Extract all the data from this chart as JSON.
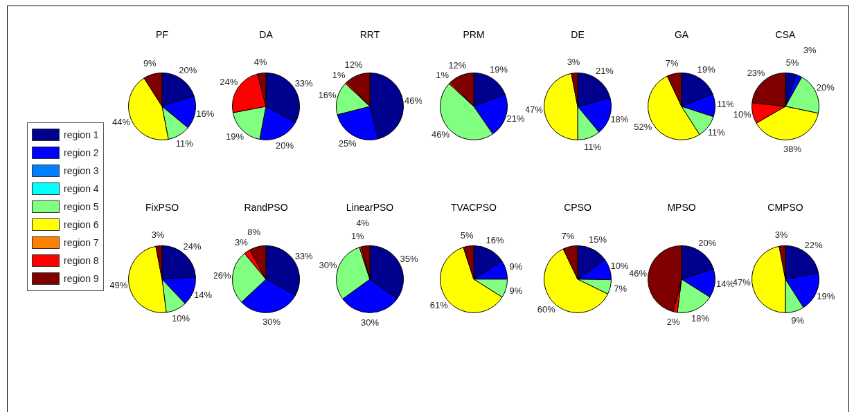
{
  "chart_data": [
    {
      "type": "pie",
      "title": "PF",
      "legend": "left",
      "categories": [
        "region 1",
        "region 2",
        "region 3",
        "region 4",
        "region 5",
        "region 6",
        "region 7",
        "region 8",
        "region 9"
      ],
      "colors": [
        "#00008f",
        "#0000ff",
        "#0080ff",
        "#00ffff",
        "#80ff80",
        "#ffff00",
        "#ff8000",
        "#ff0000",
        "#800000"
      ],
      "values": [
        20,
        16,
        null,
        null,
        11,
        44,
        null,
        null,
        9
      ],
      "value_labels": [
        "20%",
        "16%",
        null,
        null,
        "11%",
        "44%",
        null,
        null,
        "9%"
      ]
    },
    {
      "type": "pie",
      "title": "DA",
      "colors": [
        "#00008f",
        "#0000ff",
        "#0080ff",
        "#00ffff",
        "#80ff80",
        "#ffff00",
        "#ff8000",
        "#ff0000",
        "#800000"
      ],
      "values": [
        33,
        20,
        null,
        null,
        19,
        null,
        null,
        24,
        4
      ],
      "value_labels": [
        "33%",
        "20%",
        null,
        null,
        "19%",
        null,
        null,
        "24%",
        "4%"
      ]
    },
    {
      "type": "pie",
      "title": "RRT",
      "colors": [
        "#00008f",
        "#0000ff",
        "#0080ff",
        "#00ffff",
        "#80ff80",
        "#ffff00",
        "#ff8000",
        "#ff0000",
        "#800000"
      ],
      "values": [
        46,
        25,
        null,
        null,
        16,
        null,
        null,
        1,
        12
      ],
      "value_labels": [
        "46%",
        "25%",
        null,
        null,
        "16%",
        null,
        null,
        "1%",
        "12%"
      ]
    },
    {
      "type": "pie",
      "title": "PRM",
      "colors": [
        "#00008f",
        "#0000ff",
        "#0080ff",
        "#00ffff",
        "#80ff80",
        "#ffff00",
        "#ff8000",
        "#ff0000",
        "#800000"
      ],
      "values": [
        19,
        21,
        null,
        null,
        46,
        null,
        null,
        1,
        12
      ],
      "value_labels": [
        "19%",
        "21%",
        null,
        null,
        "46%",
        null,
        null,
        "1%",
        "12%"
      ]
    },
    {
      "type": "pie",
      "title": "DE",
      "colors": [
        "#00008f",
        "#0000ff",
        "#0080ff",
        "#00ffff",
        "#80ff80",
        "#ffff00",
        "#ff8000",
        "#ff0000",
        "#800000"
      ],
      "values": [
        21,
        18,
        null,
        null,
        11,
        47,
        null,
        null,
        3
      ],
      "value_labels": [
        "21%",
        "18%",
        null,
        null,
        "11%",
        "47%",
        null,
        null,
        "3%"
      ]
    },
    {
      "type": "pie",
      "title": "GA",
      "colors": [
        "#00008f",
        "#0000ff",
        "#0080ff",
        "#00ffff",
        "#80ff80",
        "#ffff00",
        "#ff8000",
        "#ff0000",
        "#800000"
      ],
      "values": [
        19,
        11,
        null,
        null,
        11,
        52,
        null,
        null,
        7
      ],
      "value_labels": [
        "19%",
        "11%",
        null,
        null,
        "11%",
        "52%",
        null,
        null,
        "7%"
      ]
    },
    {
      "type": "pie",
      "title": "CSA",
      "colors": [
        "#00008f",
        "#0000ff",
        "#0080ff",
        "#00ffff",
        "#80ff80",
        "#ffff00",
        "#ff8000",
        "#ff0000",
        "#800000"
      ],
      "values": [
        5,
        3,
        null,
        null,
        20,
        38,
        null,
        10,
        23
      ],
      "value_labels": [
        "5%",
        "3%",
        null,
        null,
        "20%",
        "38%",
        null,
        "10%",
        "23%"
      ]
    },
    {
      "type": "pie",
      "title": "FixPSO",
      "colors": [
        "#00008f",
        "#0000ff",
        "#0080ff",
        "#00ffff",
        "#80ff80",
        "#ffff00",
        "#ff8000",
        "#ff0000",
        "#800000"
      ],
      "values": [
        24,
        14,
        null,
        null,
        10,
        49,
        null,
        null,
        3
      ],
      "value_labels": [
        "24%",
        "14%",
        null,
        null,
        "10%",
        "49%",
        null,
        null,
        "3%"
      ]
    },
    {
      "type": "pie",
      "title": "RandPSO",
      "colors": [
        "#00008f",
        "#0000ff",
        "#0080ff",
        "#00ffff",
        "#80ff80",
        "#ffff00",
        "#ff8000",
        "#ff0000",
        "#800000"
      ],
      "values": [
        33,
        30,
        null,
        null,
        26,
        null,
        null,
        3,
        8
      ],
      "value_labels": [
        "33%",
        "30%",
        null,
        null,
        "26%",
        null,
        null,
        "3%",
        "8%"
      ]
    },
    {
      "type": "pie",
      "title": "LinearPSO",
      "colors": [
        "#00008f",
        "#0000ff",
        "#0080ff",
        "#00ffff",
        "#80ff80",
        "#ffff00",
        "#ff8000",
        "#ff0000",
        "#800000"
      ],
      "values": [
        35,
        30,
        null,
        null,
        30,
        null,
        null,
        1,
        4
      ],
      "value_labels": [
        "35%",
        "30%",
        null,
        null,
        "30%",
        null,
        null,
        "1%",
        "4%"
      ]
    },
    {
      "type": "pie",
      "title": "TVACPSO",
      "colors": [
        "#00008f",
        "#0000ff",
        "#0080ff",
        "#00ffff",
        "#80ff80",
        "#ffff00",
        "#ff8000",
        "#ff0000",
        "#800000"
      ],
      "values": [
        16,
        9,
        null,
        null,
        9,
        61,
        null,
        null,
        5
      ],
      "value_labels": [
        "16%",
        "9%",
        null,
        null,
        "9%",
        "61%",
        null,
        null,
        "5%"
      ]
    },
    {
      "type": "pie",
      "title": "CPSO",
      "colors": [
        "#00008f",
        "#0000ff",
        "#0080ff",
        "#00ffff",
        "#80ff80",
        "#ffff00",
        "#ff8000",
        "#ff0000",
        "#800000"
      ],
      "values": [
        15,
        10,
        null,
        null,
        7,
        60,
        null,
        null,
        7
      ],
      "value_labels": [
        "15%",
        "10%",
        null,
        null,
        "7%",
        "60%",
        null,
        null,
        "7%"
      ]
    },
    {
      "type": "pie",
      "title": "MPSO",
      "colors": [
        "#00008f",
        "#0000ff",
        "#0080ff",
        "#00ffff",
        "#80ff80",
        "#ffff00",
        "#ff8000",
        "#ff0000",
        "#800000"
      ],
      "values": [
        20,
        14,
        null,
        null,
        18,
        null,
        null,
        2,
        46
      ],
      "value_labels": [
        "20%",
        "14%",
        null,
        null,
        "18%",
        null,
        null,
        "2%",
        "46%"
      ]
    },
    {
      "type": "pie",
      "title": "CMPSO",
      "colors": [
        "#00008f",
        "#0000ff",
        "#0080ff",
        "#00ffff",
        "#80ff80",
        "#ffff00",
        "#ff8000",
        "#ff0000",
        "#800000"
      ],
      "values": [
        22,
        19,
        null,
        null,
        9,
        47,
        null,
        null,
        3
      ],
      "value_labels": [
        "22%",
        "19%",
        null,
        null,
        "9%",
        "47%",
        null,
        null,
        "3%"
      ]
    }
  ]
}
